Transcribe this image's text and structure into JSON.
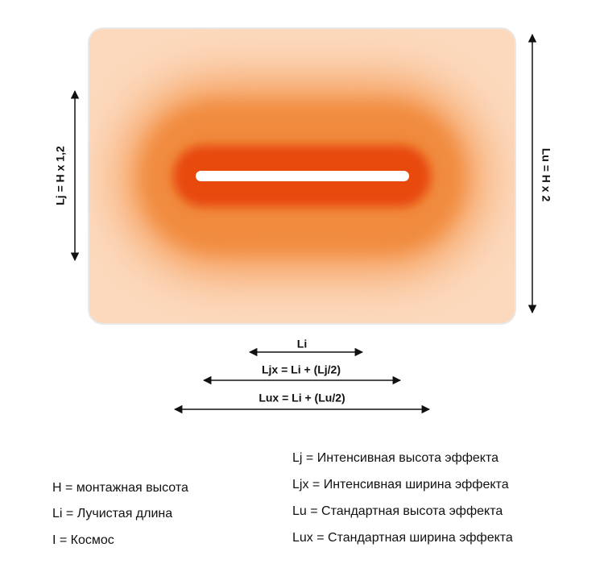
{
  "diagram": {
    "vertical_labels": {
      "left": "Lj = H x 1,2",
      "right": "Lu = H x 2"
    },
    "horizontal_labels": [
      "Li",
      "Ljx = Li + (Lj/2)",
      "Lux = Li + (Lu/2)"
    ],
    "legend_left": [
      "H = монтажная высота",
      "Li = Лучистая длина",
      "I = Космос"
    ],
    "legend_right": [
      "Lj = Интенсивная высота эффекта",
      "Ljx = Интенсивная ширина эффекта",
      "Lu = Стандартная высота эффекта",
      "Lux = Стандартная ширина эффекта"
    ]
  }
}
